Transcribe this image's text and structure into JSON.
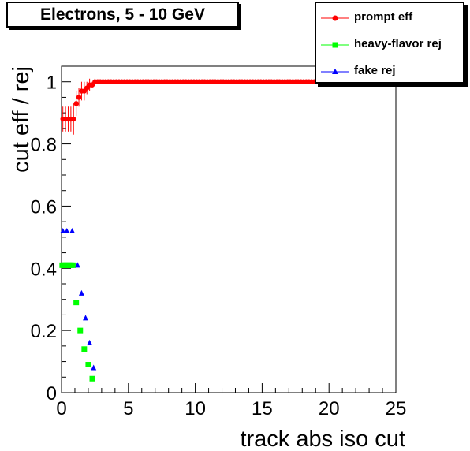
{
  "chart_data": {
    "type": "scatter",
    "title": "Electrons, 5 - 10 GeV",
    "xlabel": "track abs iso cut",
    "ylabel": "cut eff / rej",
    "xlim": [
      0,
      25
    ],
    "ylim": [
      0,
      1.05
    ],
    "xticks": [
      "0",
      "5",
      "10",
      "15",
      "20",
      "25"
    ],
    "yticks": [
      "0",
      "0.2",
      "0.4",
      "0.6",
      "0.8",
      "1"
    ],
    "grid": false,
    "legend_position": "top-right",
    "series": [
      {
        "name": "prompt eff",
        "color": "#ff0000",
        "marker": "circle",
        "x": [
          0.1,
          0.3,
          0.5,
          0.7,
          0.9,
          1.1,
          1.3,
          1.5,
          1.7,
          1.9,
          2.1,
          2.3,
          2.5,
          2.7,
          2.9,
          3.1,
          3.3,
          3.5,
          3.7,
          3.9,
          4.1,
          4.3,
          4.5,
          4.7,
          4.9,
          5.1,
          5.3,
          5.5,
          5.7,
          5.9,
          6.1,
          6.3,
          6.5,
          6.7,
          6.9,
          7.1,
          7.3,
          7.5,
          7.7,
          7.9,
          8.1,
          8.3,
          8.5,
          8.7,
          8.9,
          9.1,
          9.3,
          9.5,
          9.7,
          9.9,
          10.1,
          10.3,
          10.5,
          10.7,
          10.9,
          11.1,
          11.3,
          11.5,
          11.7,
          11.9,
          12.1,
          12.3,
          12.5,
          12.7,
          12.9,
          13.1,
          13.3,
          13.5,
          13.7,
          13.9,
          14.1,
          14.3,
          14.5,
          14.7,
          14.9,
          15.1,
          15.3,
          15.5,
          15.7,
          15.9,
          16.1,
          16.3,
          16.5,
          16.7,
          16.9,
          17.1,
          17.3,
          17.5,
          17.7,
          17.9,
          18.1,
          18.3,
          18.5,
          18.7,
          18.9
        ],
        "y": [
          0.88,
          0.88,
          0.88,
          0.88,
          0.88,
          0.93,
          0.95,
          0.97,
          0.97,
          0.98,
          0.99,
          0.99,
          1.0,
          1.0,
          1.0,
          1.0,
          1.0,
          1.0,
          1.0,
          1.0,
          1.0,
          1.0,
          1.0,
          1.0,
          1.0,
          1.0,
          1.0,
          1.0,
          1.0,
          1.0,
          1.0,
          1.0,
          1.0,
          1.0,
          1.0,
          1.0,
          1.0,
          1.0,
          1.0,
          1.0,
          1.0,
          1.0,
          1.0,
          1.0,
          1.0,
          1.0,
          1.0,
          1.0,
          1.0,
          1.0,
          1.0,
          1.0,
          1.0,
          1.0,
          1.0,
          1.0,
          1.0,
          1.0,
          1.0,
          1.0,
          1.0,
          1.0,
          1.0,
          1.0,
          1.0,
          1.0,
          1.0,
          1.0,
          1.0,
          1.0,
          1.0,
          1.0,
          1.0,
          1.0,
          1.0,
          1.0,
          1.0,
          1.0,
          1.0,
          1.0,
          1.0,
          1.0,
          1.0,
          1.0,
          1.0,
          1.0,
          1.0,
          1.0,
          1.0,
          1.0,
          1.0,
          1.0,
          1.0,
          1.0,
          1.0
        ],
        "yerr": [
          0.04,
          0.04,
          0.04,
          0.04,
          0.05,
          0.04,
          0.03,
          0.03,
          0.03,
          0.02,
          0.02,
          0.01,
          0.01,
          0.005,
          0.005,
          0.005,
          0.005,
          0.005,
          0.005,
          0.005,
          0.005,
          0.005,
          0.005,
          0.005,
          0.005,
          0.005,
          0.005,
          0.005,
          0.005,
          0.005,
          0.005,
          0.005,
          0.005,
          0.005,
          0.005,
          0.005,
          0.005,
          0.005,
          0.005,
          0.005,
          0.005,
          0.005,
          0.005,
          0.005,
          0.005,
          0.005,
          0.005,
          0.005,
          0.005,
          0.005,
          0.005,
          0.005,
          0.005,
          0.005,
          0.005,
          0.005,
          0.005,
          0.005,
          0.005,
          0.005,
          0.005,
          0.005,
          0.005,
          0.005,
          0.005,
          0.005,
          0.005,
          0.005,
          0.005,
          0.005,
          0.005,
          0.005,
          0.005,
          0.005,
          0.005,
          0.005,
          0.005,
          0.005,
          0.005,
          0.005,
          0.005,
          0.005,
          0.005,
          0.005,
          0.005,
          0.005,
          0.005,
          0.005,
          0.005,
          0.005,
          0.005,
          0.005,
          0.005,
          0.005,
          0.005
        ]
      },
      {
        "name": "heavy-flavor rej",
        "color": "#00ff00",
        "marker": "square",
        "x": [
          0.05,
          0.15,
          0.25,
          0.35,
          0.45,
          0.55,
          0.65,
          0.75,
          0.85,
          1.1,
          1.4,
          1.7,
          2.0,
          2.3
        ],
        "y": [
          0.41,
          0.41,
          0.41,
          0.41,
          0.41,
          0.41,
          0.41,
          0.41,
          0.41,
          0.29,
          0.2,
          0.14,
          0.09,
          0.045
        ]
      },
      {
        "name": "fake rej",
        "color": "#0000ff",
        "marker": "triangle",
        "x": [
          0.1,
          0.4,
          0.8,
          1.2,
          1.5,
          1.8,
          2.1,
          2.4
        ],
        "y": [
          0.52,
          0.52,
          0.52,
          0.41,
          0.32,
          0.24,
          0.16,
          0.08
        ]
      }
    ]
  }
}
